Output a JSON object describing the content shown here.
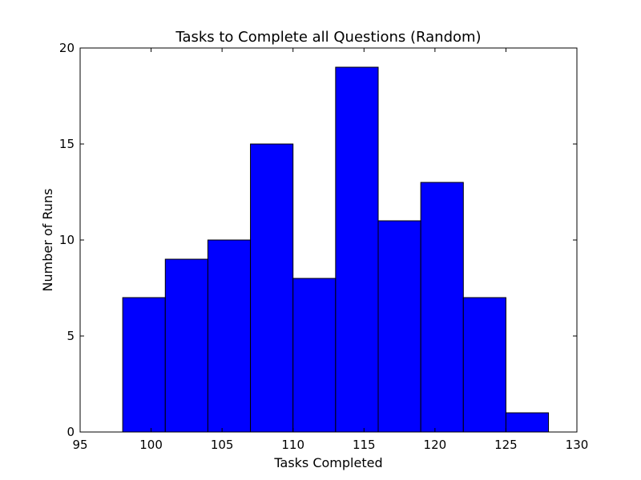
{
  "chart_data": {
    "type": "bar",
    "subtype": "histogram",
    "title": "Tasks to Complete all Questions (Random)",
    "xlabel": "Tasks Completed",
    "ylabel": "Number of Runs",
    "xlim": [
      95,
      130
    ],
    "ylim": [
      0,
      20
    ],
    "xticks": [
      95,
      100,
      105,
      110,
      115,
      120,
      125,
      130
    ],
    "yticks": [
      0,
      5,
      10,
      15,
      20
    ],
    "grid": false,
    "legend": "none",
    "bins": [
      {
        "start": 98,
        "end": 101,
        "count": 7
      },
      {
        "start": 101,
        "end": 104,
        "count": 9
      },
      {
        "start": 104,
        "end": 107,
        "count": 10
      },
      {
        "start": 107,
        "end": 110,
        "count": 15
      },
      {
        "start": 110,
        "end": 113,
        "count": 8
      },
      {
        "start": 113,
        "end": 116,
        "count": 19
      },
      {
        "start": 116,
        "end": 119,
        "count": 11
      },
      {
        "start": 119,
        "end": 122,
        "count": 13
      },
      {
        "start": 122,
        "end": 125,
        "count": 7
      },
      {
        "start": 125,
        "end": 128,
        "count": 1
      }
    ],
    "colors": {
      "bar_fill": "#0000ff",
      "bar_edge": "#000000",
      "axes": "#000000",
      "background": "#ffffff"
    }
  }
}
